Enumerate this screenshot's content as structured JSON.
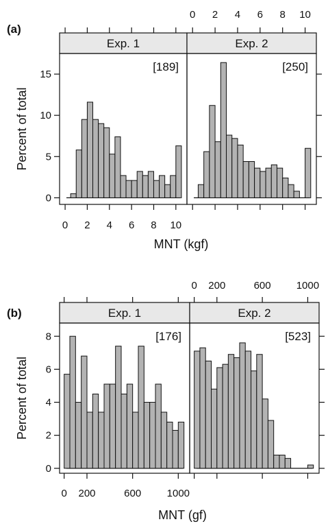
{
  "chart_data": [
    {
      "type": "bar",
      "panel_label": "(a)",
      "xlabel": "MNT (kgf)",
      "ylabel": "Percent of total",
      "xlim": [
        -0.5,
        11.0
      ],
      "ylim": [
        -0.8,
        17.5
      ],
      "x_ticks": [
        0,
        2,
        4,
        6,
        8,
        10
      ],
      "y_ticks": [
        0,
        5,
        10,
        15
      ],
      "bin_width": 0.5,
      "panels": [
        {
          "strip": "Exp. 1",
          "count_label": "[189]",
          "bins": [
            -0.5,
            0,
            0.5,
            1,
            1.5,
            2,
            2.5,
            3,
            3.5,
            4,
            4.5,
            5,
            5.5,
            6,
            6.5,
            7,
            7.5,
            8,
            8.5,
            9,
            9.5,
            10
          ],
          "values": [
            0,
            0,
            0.5,
            5.8,
            9.5,
            11.6,
            9.5,
            9.0,
            8.5,
            5.3,
            7.4,
            2.7,
            2.1,
            2.1,
            3.2,
            2.7,
            3.2,
            2.1,
            2.7,
            1.6,
            2.7,
            6.3
          ]
        },
        {
          "strip": "Exp. 2",
          "count_label": "[250]",
          "bins": [
            -0.5,
            0,
            0.5,
            1,
            1.5,
            2,
            2.5,
            3,
            3.5,
            4,
            4.5,
            5,
            5.5,
            6,
            6.5,
            7,
            7.5,
            8,
            8.5,
            9,
            9.5,
            10
          ],
          "values": [
            0,
            0,
            1.6,
            5.6,
            11.2,
            6.8,
            16.4,
            7.6,
            7.2,
            6.4,
            4.4,
            4.4,
            3.6,
            3.2,
            3.6,
            4.0,
            3.6,
            2.4,
            1.6,
            0.8,
            0,
            6.0
          ]
        }
      ]
    },
    {
      "type": "bar",
      "panel_label": "(b)",
      "xlabel": "MNT (gf)",
      "ylabel": "Percent of total",
      "xlim": [
        -40,
        1100
      ],
      "ylim": [
        -0.3,
        8.8
      ],
      "x_ticks": [
        0,
        200,
        600,
        1000
      ],
      "y_ticks": [
        0,
        2,
        4,
        6,
        8
      ],
      "bin_width": 50,
      "panels": [
        {
          "strip": "Exp. 1",
          "count_label": "[176]",
          "bins": [
            0,
            50,
            100,
            150,
            200,
            250,
            300,
            350,
            400,
            450,
            500,
            550,
            600,
            650,
            700,
            750,
            800,
            850,
            900,
            950,
            1000
          ],
          "values": [
            5.7,
            8.0,
            4.0,
            6.8,
            3.4,
            4.5,
            3.4,
            5.1,
            5.1,
            7.4,
            4.5,
            5.1,
            3.4,
            7.4,
            4.0,
            4.0,
            5.1,
            3.4,
            2.8,
            2.3,
            2.8
          ]
        },
        {
          "strip": "Exp. 2",
          "count_label": "[523]",
          "bins": [
            0,
            50,
            100,
            150,
            200,
            250,
            300,
            350,
            400,
            450,
            500,
            550,
            600,
            650,
            700,
            750,
            800,
            850,
            900,
            950,
            1000
          ],
          "values": [
            7.1,
            7.3,
            6.5,
            4.8,
            6.1,
            6.3,
            6.9,
            6.7,
            7.6,
            7.1,
            5.9,
            6.9,
            4.2,
            2.9,
            0.8,
            0.8,
            0.6,
            0,
            0,
            0,
            0.2
          ]
        }
      ]
    }
  ]
}
